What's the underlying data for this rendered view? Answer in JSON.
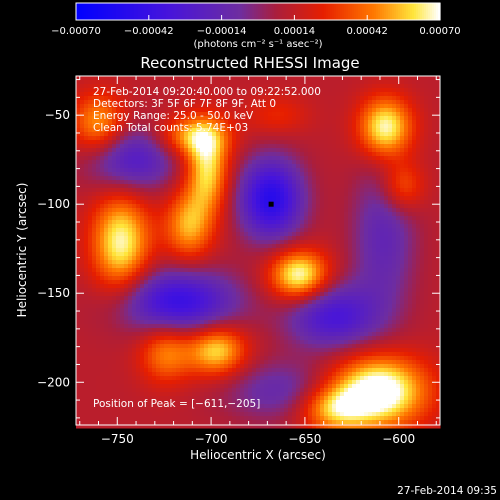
{
  "chart_data": {
    "type": "heatmap",
    "title": "Reconstructed RHESSI Image",
    "xlabel": "Heliocentric X (arcsec)",
    "ylabel": "Heliocentric Y (arcsec)",
    "xlim": [
      -772,
      -578
    ],
    "ylim": [
      -224,
      -28
    ],
    "x_ticks": [
      -750,
      -700,
      -650,
      -600
    ],
    "x_tick_labels": [
      "−750",
      "−700",
      "−650",
      "−600"
    ],
    "y_ticks": [
      -50,
      -100,
      -150,
      -200
    ],
    "y_tick_labels": [
      "−50",
      "−100",
      "−150",
      "−200"
    ],
    "colorbar": {
      "min": -0.0007,
      "max": 0.0007,
      "ticks": [
        -0.0007,
        -0.00042,
        -0.00014,
        0.00014,
        0.00042,
        0.0007
      ],
      "tick_labels": [
        "−0.00070",
        "−0.00042",
        "−0.00014",
        "0.00014",
        "0.00042",
        "0.00070"
      ],
      "unit_label": "(photons cm⁻² s⁻¹ asec⁻²)"
    },
    "annotations": [
      "27-Feb-2014 09:20:40.000 to 09:22:52.000",
      "Detectors: 3F 5F 6F 7F 8F 9F, Att 0",
      "Energy Range: 25.0 - 50.0 keV",
      "Clean    Total counts: 5.74E+03"
    ],
    "peak_label": "Position of Peak = [−611,−205]",
    "peak": [
      -611,
      -205
    ],
    "marker": [
      -668,
      -100
    ],
    "footer_timestamp": "27-Feb-2014 09:35",
    "blobs": [
      {
        "x": -668,
        "y": -97,
        "amp": -0.00062,
        "sx": 12,
        "sy": 16
      },
      {
        "x": -742,
        "y": -75,
        "amp": -0.0004,
        "sx": 17,
        "sy": 13
      },
      {
        "x": -718,
        "y": -155,
        "amp": -0.00055,
        "sx": 22,
        "sy": 13
      },
      {
        "x": -635,
        "y": -163,
        "amp": -0.00045,
        "sx": 17,
        "sy": 13
      },
      {
        "x": -608,
        "y": -118,
        "amp": -0.00028,
        "sx": 12,
        "sy": 30
      },
      {
        "x": -662,
        "y": -205,
        "amp": -0.00025,
        "sx": 22,
        "sy": 12
      },
      {
        "x": -611,
        "y": -205,
        "amp": 0.0007,
        "sx": 18,
        "sy": 14
      },
      {
        "x": -635,
        "y": -215,
        "amp": 0.0004,
        "sx": 13,
        "sy": 9
      },
      {
        "x": -653,
        "y": -140,
        "amp": 0.0006,
        "sx": 11,
        "sy": 10
      },
      {
        "x": -697,
        "y": -182,
        "amp": 0.0005,
        "sx": 11,
        "sy": 10
      },
      {
        "x": -724,
        "y": -183,
        "amp": 0.00035,
        "sx": 10,
        "sy": 12
      },
      {
        "x": -748,
        "y": -122,
        "amp": 0.00055,
        "sx": 11,
        "sy": 20
      },
      {
        "x": -712,
        "y": -112,
        "amp": 0.0004,
        "sx": 9,
        "sy": 14
      },
      {
        "x": -702,
        "y": -80,
        "amp": 0.0005,
        "sx": 8,
        "sy": 17
      },
      {
        "x": -710,
        "y": -62,
        "amp": 0.0004,
        "sx": 13,
        "sy": 8
      },
      {
        "x": -607,
        "y": -57,
        "amp": 0.00058,
        "sx": 10,
        "sy": 12
      },
      {
        "x": -598,
        "y": -90,
        "amp": 0.0003,
        "sx": 8,
        "sy": 10
      },
      {
        "x": -760,
        "y": -55,
        "amp": 0.0004,
        "sx": 10,
        "sy": 12
      },
      {
        "x": -665,
        "y": -50,
        "amp": 0.00015,
        "sx": 12,
        "sy": 8
      }
    ]
  }
}
